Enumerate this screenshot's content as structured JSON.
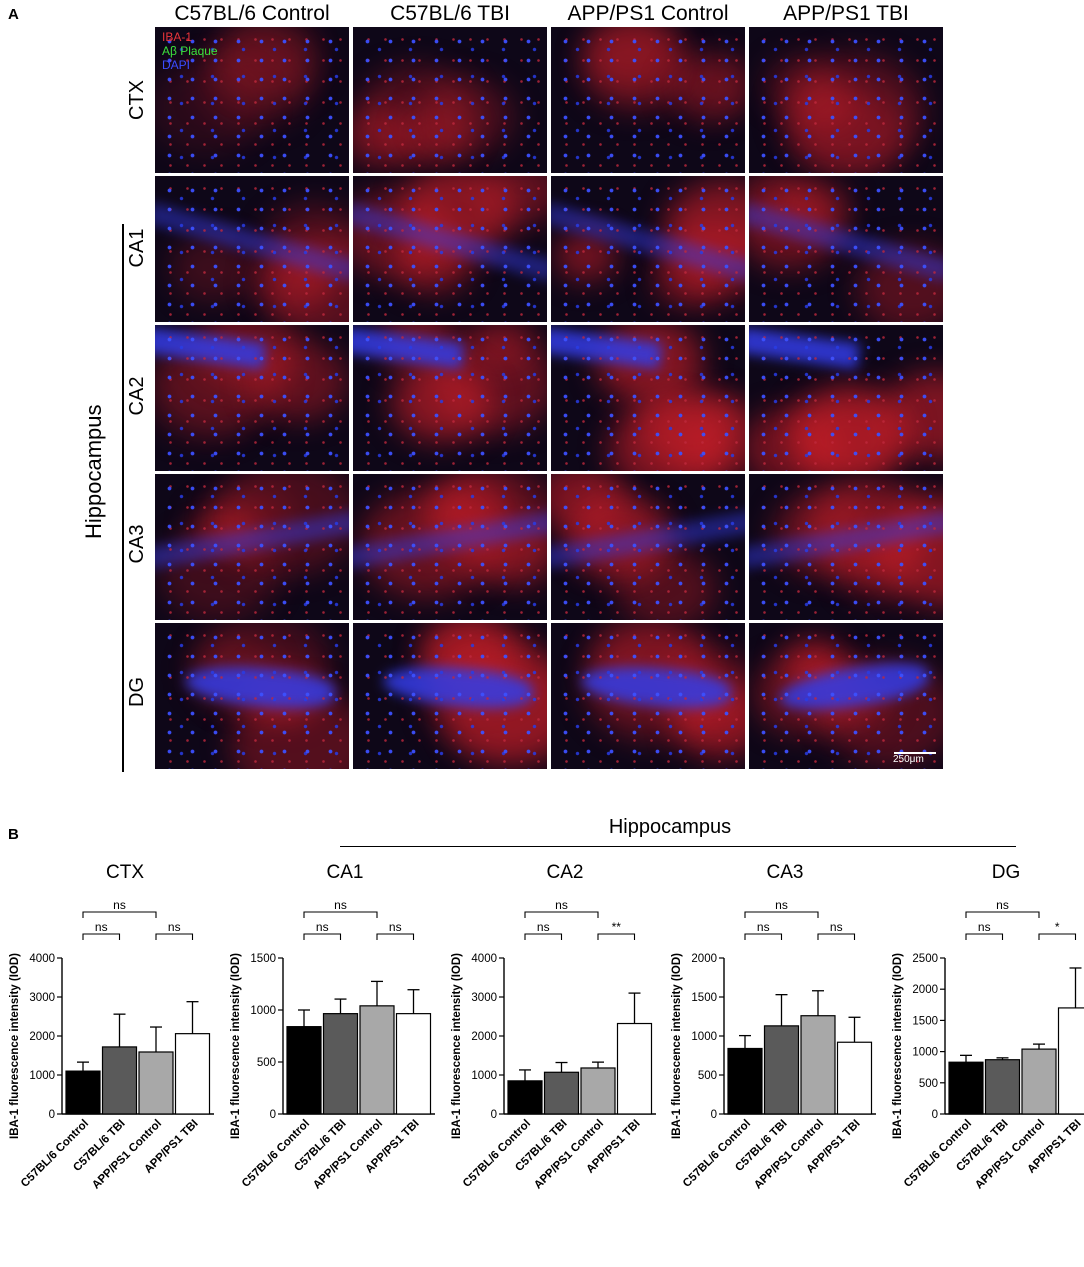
{
  "panel_a": {
    "letter": "A",
    "columns": [
      "C57BL/6 Control",
      "C57BL/6 TBI",
      "APP/PS1 Control",
      "APP/PS1 TBI"
    ],
    "rows": [
      "CTX",
      "CA1",
      "CA2",
      "CA3",
      "DG"
    ],
    "group_label": "Hippocampus",
    "legend": {
      "items": [
        {
          "label": "IBA-1",
          "color": "#e8343a"
        },
        {
          "label": "Aβ Plaque",
          "color": "#3ce23c"
        },
        {
          "label": "DAPI",
          "color": "#2f3fd8"
        }
      ]
    },
    "scale_bar": "250μm"
  },
  "panel_b": {
    "letter": "B",
    "group_label": "Hippocampus"
  },
  "chart_data": [
    {
      "type": "bar",
      "title": "CTX",
      "ylabel": "IBA-1 fluorescence intensity (IOD)",
      "categories": [
        "C57BL/6 Control",
        "C57BL/6 TBI",
        "APP/PS1 Control",
        "APP/PS1 TBI"
      ],
      "values": [
        1100,
        1720,
        1590,
        2060
      ],
      "errors": [
        230,
        840,
        640,
        820
      ],
      "ylim": [
        0,
        4000
      ],
      "yticks": [
        0,
        1000,
        2000,
        3000,
        4000
      ],
      "significance": [
        {
          "pair": [
            0,
            1
          ],
          "label": "ns"
        },
        {
          "pair": [
            2,
            3
          ],
          "label": "ns"
        },
        {
          "pair": [
            0,
            2
          ],
          "label": "ns"
        }
      ]
    },
    {
      "type": "bar",
      "title": "CA1",
      "ylabel": "IBA-1 fluorescence intensity (IOD)",
      "categories": [
        "C57BL/6 Control",
        "C57BL/6 TBI",
        "APP/PS1 Control",
        "APP/PS1 TBI"
      ],
      "values": [
        840,
        965,
        1040,
        965
      ],
      "errors": [
        160,
        140,
        235,
        230
      ],
      "ylim": [
        0,
        1500
      ],
      "yticks": [
        0,
        500,
        1000,
        1500
      ],
      "significance": [
        {
          "pair": [
            0,
            1
          ],
          "label": "ns"
        },
        {
          "pair": [
            2,
            3
          ],
          "label": "ns"
        },
        {
          "pair": [
            0,
            2
          ],
          "label": "ns"
        }
      ]
    },
    {
      "type": "bar",
      "title": "CA2",
      "ylabel": "IBA-1 fluorescence intensity (IOD)",
      "categories": [
        "C57BL/6 Control",
        "C57BL/6 TBI",
        "APP/PS1 Control",
        "APP/PS1 TBI"
      ],
      "values": [
        850,
        1070,
        1180,
        2320
      ],
      "errors": [
        280,
        250,
        150,
        780
      ],
      "ylim": [
        0,
        4000
      ],
      "yticks": [
        0,
        1000,
        2000,
        3000,
        4000
      ],
      "significance": [
        {
          "pair": [
            0,
            1
          ],
          "label": "ns"
        },
        {
          "pair": [
            2,
            3
          ],
          "label": "**"
        },
        {
          "pair": [
            0,
            2
          ],
          "label": "ns"
        }
      ]
    },
    {
      "type": "bar",
      "title": "CA3",
      "ylabel": "IBA-1 fluorescence intensity (IOD)",
      "categories": [
        "C57BL/6 Control",
        "C57BL/6 TBI",
        "APP/PS1 Control",
        "APP/PS1 TBI"
      ],
      "values": [
        840,
        1130,
        1260,
        920
      ],
      "errors": [
        165,
        400,
        320,
        320
      ],
      "ylim": [
        0,
        2000
      ],
      "yticks": [
        0,
        500,
        1000,
        1500,
        2000
      ],
      "significance": [
        {
          "pair": [
            0,
            1
          ],
          "label": "ns"
        },
        {
          "pair": [
            2,
            3
          ],
          "label": "ns"
        },
        {
          "pair": [
            0,
            2
          ],
          "label": "ns"
        }
      ]
    },
    {
      "type": "bar",
      "title": "DG",
      "ylabel": "IBA-1 fluorescence intensity (IOD)",
      "categories": [
        "C57BL/6 Control",
        "C57BL/6 TBI",
        "APP/PS1 Control",
        "APP/PS1 TBI"
      ],
      "values": [
        830,
        870,
        1040,
        1700
      ],
      "errors": [
        110,
        30,
        80,
        640
      ],
      "ylim": [
        0,
        2500
      ],
      "yticks": [
        0,
        500,
        1000,
        1500,
        2000,
        2500
      ],
      "significance": [
        {
          "pair": [
            0,
            1
          ],
          "label": "ns"
        },
        {
          "pair": [
            2,
            3
          ],
          "label": "*"
        },
        {
          "pair": [
            0,
            2
          ],
          "label": "ns"
        }
      ]
    }
  ],
  "bar_colors": [
    "#000000",
    "#5a5a5a",
    "#a8a8a8",
    "#ffffff"
  ]
}
